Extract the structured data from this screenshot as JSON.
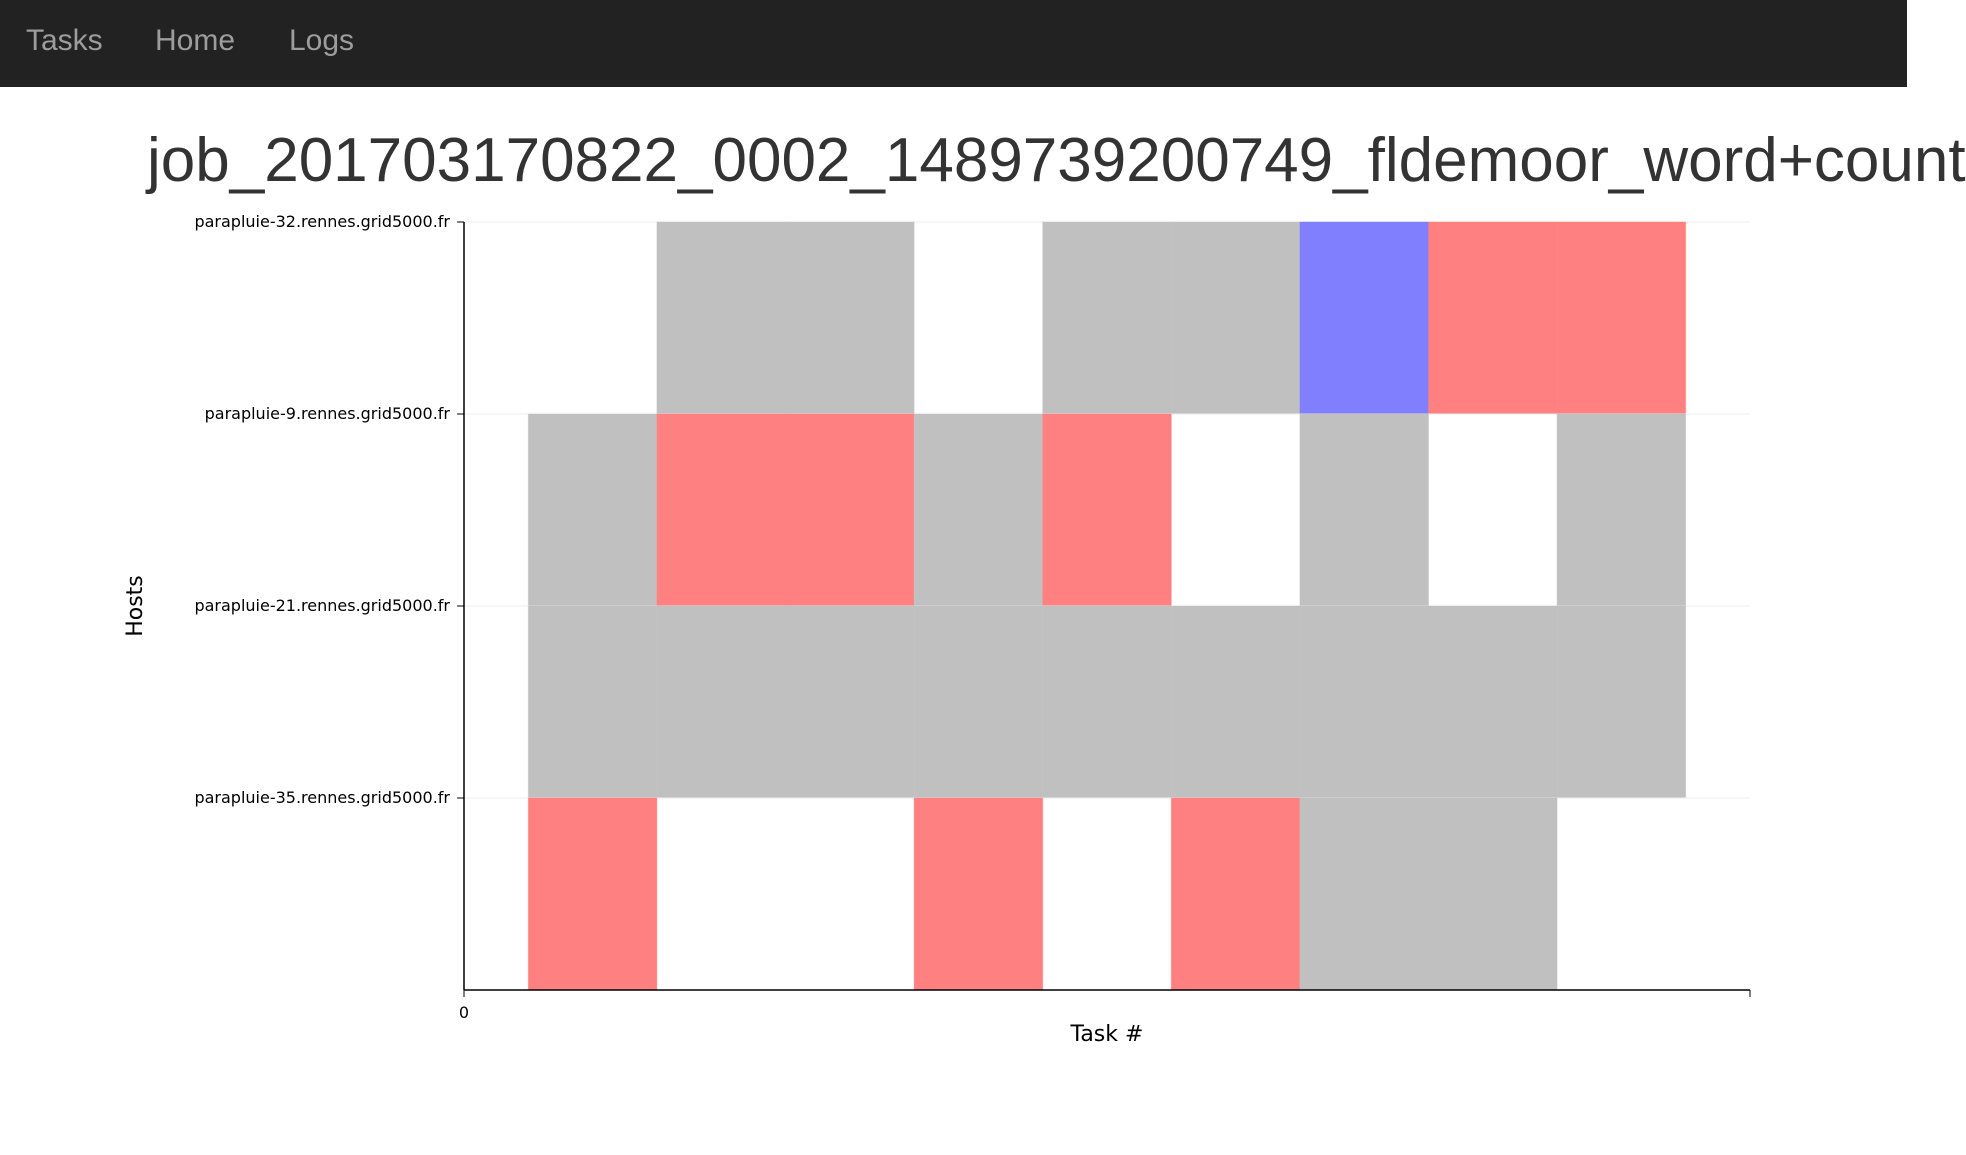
{
  "nav": [
    "Tasks",
    "Home",
    "Logs"
  ],
  "title": "job_201703170822_0002_1489739200749_fldemoor_word+count",
  "chart_data": {
    "type": "heatmap",
    "xlabel": "Task #",
    "ylabel": "Hosts",
    "xlim": [
      0,
      10
    ],
    "xticks": [
      0
    ],
    "series": [
      {
        "name": "parapluie-32.rennes.grid5000.fr",
        "values": [
          2,
          3,
          5,
          6,
          7,
          8,
          9
        ],
        "colors": [
          "#c0c0c0",
          "#c0c0c0",
          "#c0c0c0",
          "#c0c0c0",
          "#8080ff",
          "#ff8080",
          "#ff8080"
        ]
      },
      {
        "name": "parapluie-9.rennes.grid5000.fr",
        "values": [
          1,
          2,
          3,
          4,
          5,
          7,
          9
        ],
        "colors": [
          "#c0c0c0",
          "#ff8080",
          "#ff8080",
          "#c0c0c0",
          "#ff8080",
          "#c0c0c0",
          "#c0c0c0"
        ]
      },
      {
        "name": "parapluie-21.rennes.grid5000.fr",
        "values": [
          1,
          2,
          3,
          4,
          5,
          6,
          7,
          8,
          9
        ],
        "colors": [
          "#c0c0c0",
          "#c0c0c0",
          "#c0c0c0",
          "#c0c0c0",
          "#c0c0c0",
          "#c0c0c0",
          "#c0c0c0",
          "#c0c0c0",
          "#c0c0c0"
        ]
      },
      {
        "name": "parapluie-35.rennes.grid5000.fr",
        "values": [
          1,
          4,
          6,
          7,
          8
        ],
        "colors": [
          "#ff8080",
          "#ff8080",
          "#ff8080",
          "#c0c0c0",
          "#c0c0c0"
        ]
      }
    ]
  }
}
